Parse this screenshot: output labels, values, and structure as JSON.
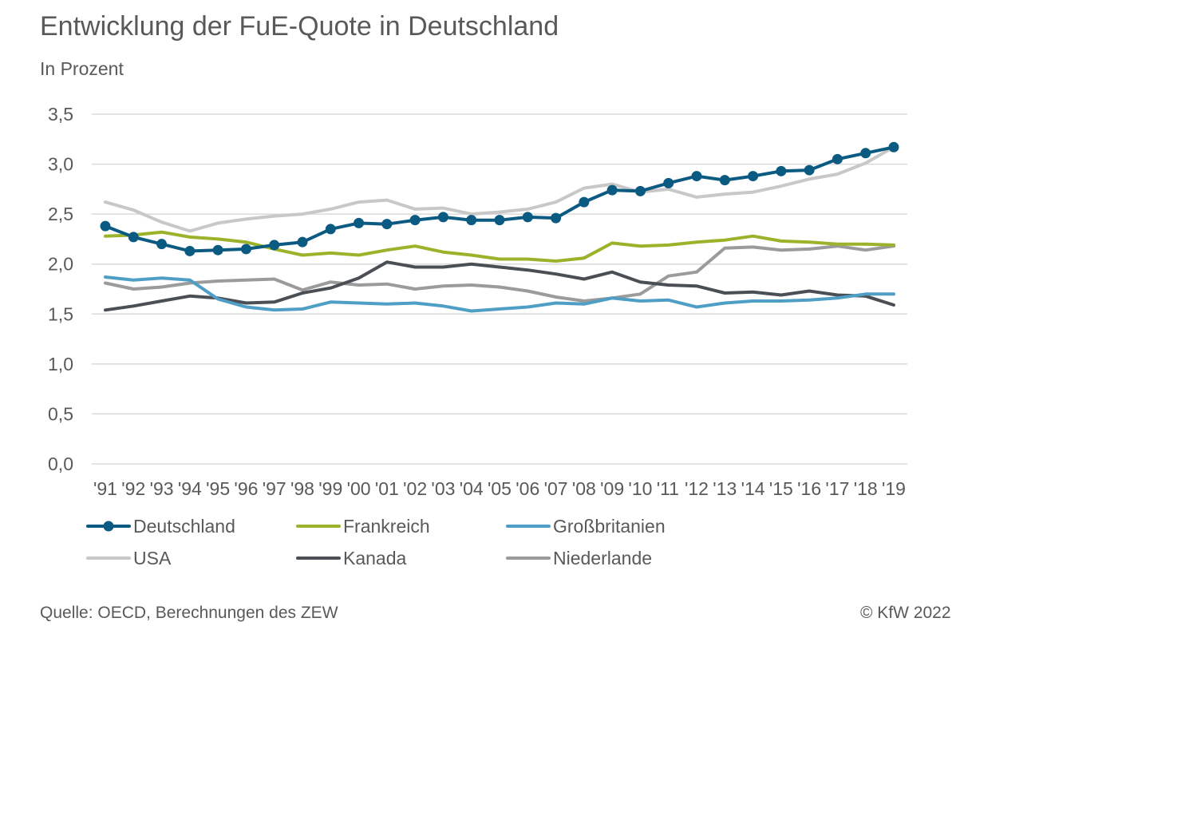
{
  "title": "Entwicklung der FuE-Quote in Deutschland",
  "subtitle": "In Prozent",
  "source": "Quelle: OECD, Berechnungen des ZEW",
  "copyright": "© KfW 2022",
  "chart_data": {
    "type": "line",
    "categories": [
      "'91",
      "'92",
      "'93",
      "'94",
      "'95",
      "'96",
      "'97",
      "'98",
      "'99",
      "'00",
      "'01",
      "'02",
      "'03",
      "'04",
      "'05",
      "'06",
      "'07",
      "'08",
      "'09",
      "'10",
      "'11",
      "'12",
      "'13",
      "'14",
      "'15",
      "'16",
      "'17",
      "'18",
      "'19"
    ],
    "ylim": [
      0,
      3.5
    ],
    "yticks": [
      "0,0",
      "0,5",
      "1,0",
      "1,5",
      "2,0",
      "2,5",
      "3,0",
      "3,5"
    ],
    "grid": true,
    "legend_position": "bottom",
    "series": [
      {
        "name": "Deutschland",
        "color": "#0b5a82",
        "markers": true,
        "values": [
          2.38,
          2.27,
          2.2,
          2.13,
          2.14,
          2.15,
          2.19,
          2.22,
          2.35,
          2.41,
          2.4,
          2.44,
          2.47,
          2.44,
          2.44,
          2.47,
          2.46,
          2.62,
          2.74,
          2.73,
          2.81,
          2.88,
          2.84,
          2.88,
          2.93,
          2.94,
          3.05,
          3.11,
          3.17
        ]
      },
      {
        "name": "Frankreich",
        "color": "#9bb32a",
        "markers": false,
        "values": [
          2.28,
          2.29,
          2.32,
          2.27,
          2.25,
          2.22,
          2.15,
          2.09,
          2.11,
          2.09,
          2.14,
          2.18,
          2.12,
          2.09,
          2.05,
          2.05,
          2.03,
          2.06,
          2.21,
          2.18,
          2.19,
          2.22,
          2.24,
          2.28,
          2.23,
          2.22,
          2.2,
          2.2,
          2.19
        ]
      },
      {
        "name": "Großbritanien",
        "color": "#4e9ec6",
        "markers": false,
        "values": [
          1.87,
          1.84,
          1.86,
          1.84,
          1.65,
          1.57,
          1.54,
          1.55,
          1.62,
          1.61,
          1.6,
          1.61,
          1.58,
          1.53,
          1.55,
          1.57,
          1.61,
          1.6,
          1.66,
          1.63,
          1.64,
          1.57,
          1.61,
          1.63,
          1.63,
          1.64,
          1.66,
          1.7,
          1.7
        ]
      },
      {
        "name": "USA",
        "color": "#c8c8c8",
        "markers": false,
        "values": [
          2.62,
          2.54,
          2.42,
          2.33,
          2.41,
          2.45,
          2.48,
          2.5,
          2.55,
          2.62,
          2.64,
          2.55,
          2.56,
          2.5,
          2.52,
          2.55,
          2.62,
          2.76,
          2.8,
          2.72,
          2.75,
          2.67,
          2.7,
          2.72,
          2.78,
          2.85,
          2.9,
          3.01,
          3.17
        ]
      },
      {
        "name": "Kanada",
        "color": "#4a4f55",
        "markers": false,
        "values": [
          1.54,
          1.58,
          1.63,
          1.68,
          1.66,
          1.61,
          1.62,
          1.71,
          1.76,
          1.86,
          2.02,
          1.97,
          1.97,
          2.0,
          1.97,
          1.94,
          1.9,
          1.85,
          1.92,
          1.82,
          1.79,
          1.78,
          1.71,
          1.72,
          1.69,
          1.73,
          1.69,
          1.68,
          1.59
        ]
      },
      {
        "name": "Niederlande",
        "color": "#9b9b9b",
        "markers": false,
        "values": [
          1.81,
          1.75,
          1.77,
          1.81,
          1.83,
          1.84,
          1.85,
          1.74,
          1.82,
          1.79,
          1.8,
          1.75,
          1.78,
          1.79,
          1.77,
          1.73,
          1.67,
          1.63,
          1.66,
          1.7,
          1.88,
          1.92,
          2.16,
          2.17,
          2.14,
          2.15,
          2.18,
          2.14,
          2.18
        ]
      }
    ]
  }
}
